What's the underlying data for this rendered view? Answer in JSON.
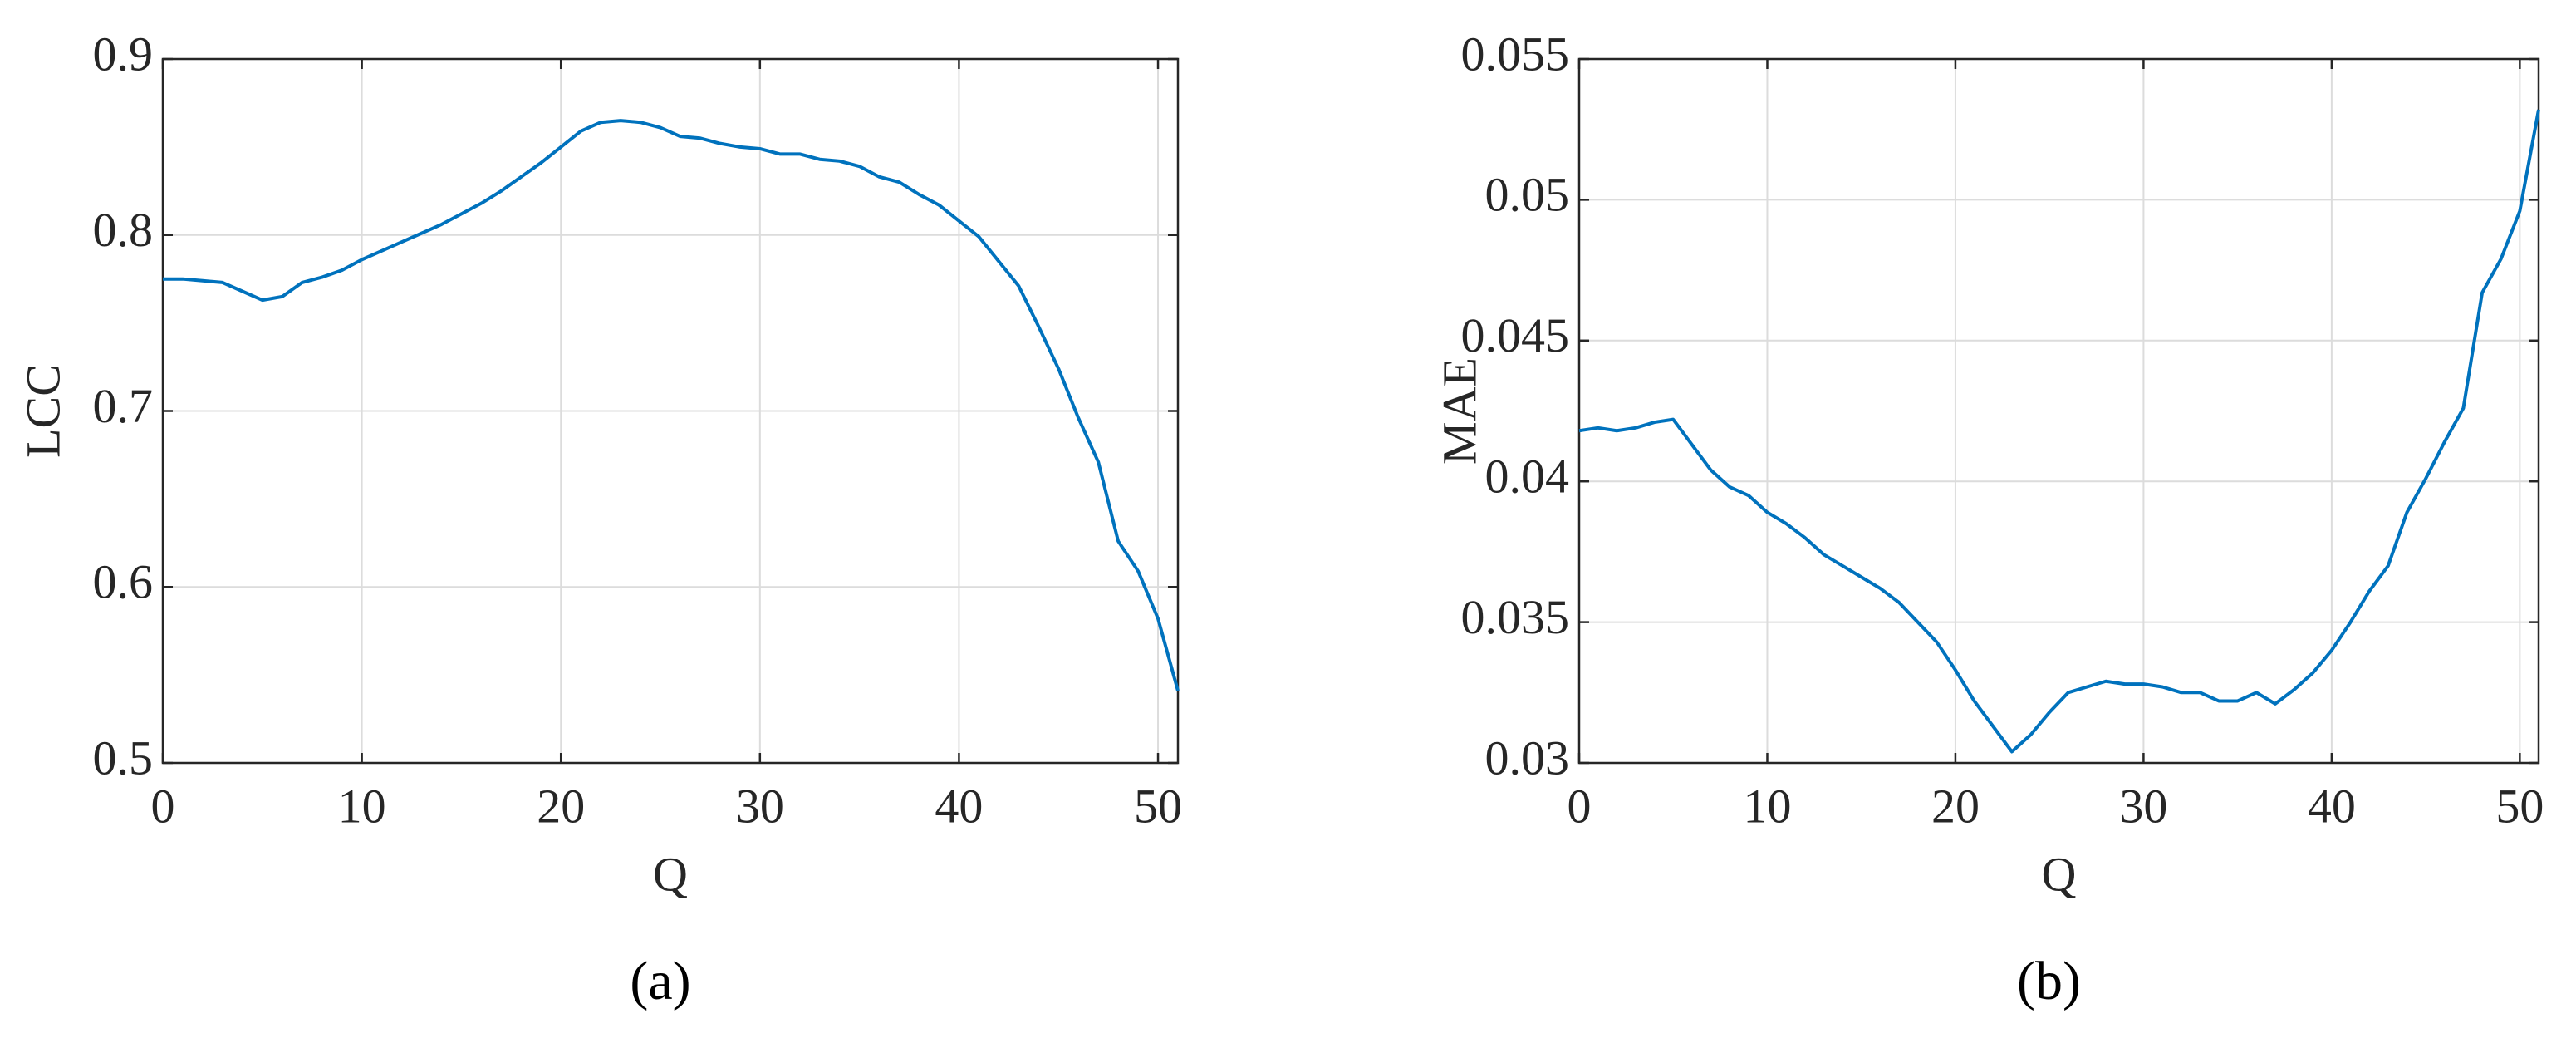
{
  "chart_data": [
    {
      "type": "line",
      "x_label": "Q",
      "y_label": "LCC",
      "caption": "(a)",
      "x": [
        0,
        1,
        2,
        3,
        4,
        5,
        6,
        7,
        8,
        9,
        10,
        11,
        12,
        13,
        14,
        15,
        16,
        17,
        18,
        19,
        20,
        21,
        22,
        23,
        24,
        25,
        26,
        27,
        28,
        29,
        30,
        31,
        32,
        33,
        34,
        35,
        36,
        37,
        38,
        39,
        40,
        41,
        42,
        43,
        44,
        45,
        46,
        47,
        48,
        49,
        50,
        51
      ],
      "values": [
        0.775,
        0.775,
        0.774,
        0.773,
        0.768,
        0.763,
        0.765,
        0.773,
        0.776,
        0.78,
        0.786,
        0.791,
        0.796,
        0.801,
        0.806,
        0.812,
        0.818,
        0.825,
        0.833,
        0.841,
        0.85,
        0.859,
        0.864,
        0.865,
        0.864,
        0.861,
        0.856,
        0.855,
        0.852,
        0.85,
        0.849,
        0.846,
        0.846,
        0.843,
        0.842,
        0.839,
        0.833,
        0.83,
        0.823,
        0.817,
        0.808,
        0.799,
        0.785,
        0.771,
        0.748,
        0.724,
        0.696,
        0.671,
        0.626,
        0.609,
        0.582,
        0.541
      ],
      "color": "#0072bd",
      "xlim": [
        0,
        51
      ],
      "ylim": [
        0.5,
        0.9
      ],
      "xticks": [
        0,
        10,
        20,
        30,
        40,
        50
      ],
      "yticks": [
        0.5,
        0.6,
        0.7,
        0.8,
        0.9
      ],
      "grid": true
    },
    {
      "type": "line",
      "x_label": "Q",
      "y_label": "MAE",
      "caption": "(b)",
      "x": [
        0,
        1,
        2,
        3,
        4,
        5,
        6,
        7,
        8,
        9,
        10,
        11,
        12,
        13,
        14,
        15,
        16,
        17,
        18,
        19,
        20,
        21,
        22,
        23,
        24,
        25,
        26,
        27,
        28,
        29,
        30,
        31,
        32,
        33,
        34,
        35,
        36,
        37,
        38,
        39,
        40,
        41,
        42,
        43,
        44,
        45,
        46,
        47,
        48,
        49,
        50,
        51
      ],
      "values": [
        0.0418,
        0.0419,
        0.0418,
        0.0419,
        0.0421,
        0.0422,
        0.0413,
        0.0404,
        0.0398,
        0.0395,
        0.0389,
        0.0385,
        0.038,
        0.0374,
        0.037,
        0.0366,
        0.0362,
        0.0357,
        0.035,
        0.0343,
        0.0333,
        0.0322,
        0.0313,
        0.0304,
        0.031,
        0.0318,
        0.0325,
        0.0327,
        0.0329,
        0.0328,
        0.0328,
        0.0327,
        0.0325,
        0.0325,
        0.0322,
        0.0322,
        0.0325,
        0.0321,
        0.0326,
        0.0332,
        0.034,
        0.035,
        0.0361,
        0.037,
        0.0389,
        0.0401,
        0.0414,
        0.0426,
        0.0467,
        0.0479,
        0.0496,
        0.0532
      ],
      "color": "#0072bd",
      "xlim": [
        0,
        51
      ],
      "ylim": [
        0.03,
        0.055
      ],
      "xticks": [
        0,
        10,
        20,
        30,
        40,
        50
      ],
      "yticks": [
        0.03,
        0.035,
        0.04,
        0.045,
        0.05,
        0.055
      ],
      "grid": true
    }
  ]
}
